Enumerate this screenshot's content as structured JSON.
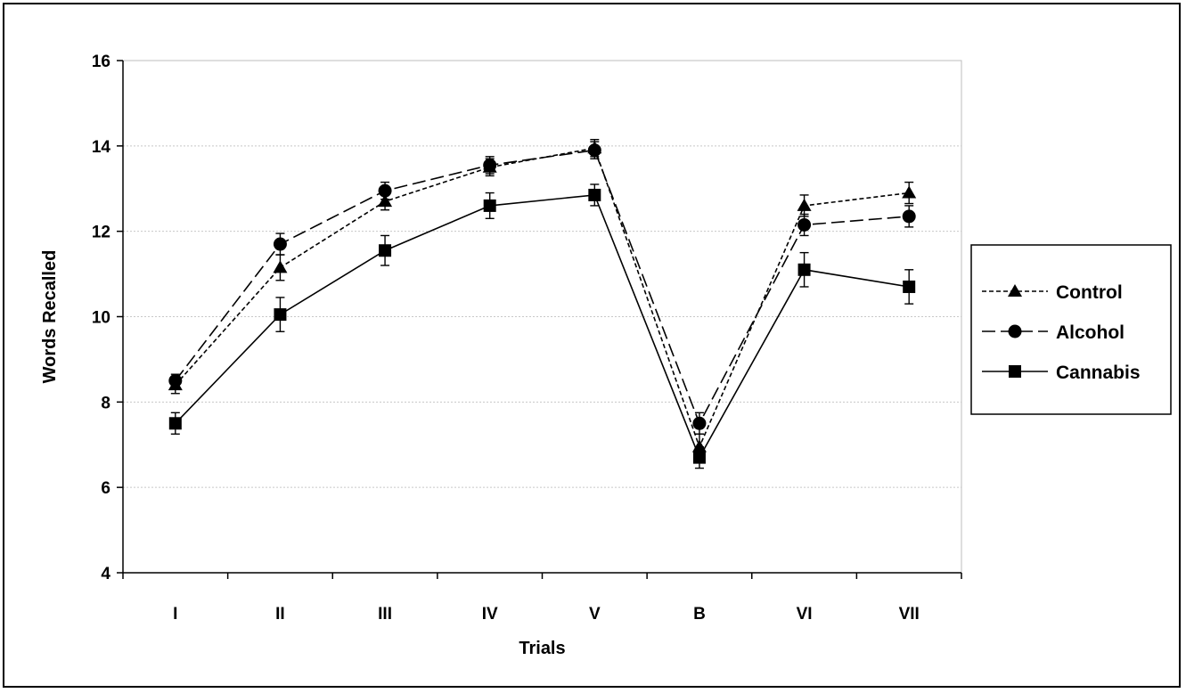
{
  "chart_data": {
    "type": "line",
    "title": "",
    "xlabel": "Trials",
    "ylabel": "Words Recalled",
    "categories": [
      "I",
      "II",
      "III",
      "IV",
      "V",
      "B",
      "VI",
      "VII"
    ],
    "ylim": [
      4,
      16
    ],
    "yticks": [
      4,
      6,
      8,
      10,
      12,
      14,
      16
    ],
    "grid": "horizontal",
    "legend_position": "right",
    "series": [
      {
        "name": "Control",
        "marker": "triangle",
        "dash": "short-dash",
        "values": [
          8.4,
          11.15,
          12.7,
          13.5,
          13.95,
          6.95,
          12.6,
          12.9
        ],
        "errors": [
          0.2,
          0.3,
          0.2,
          0.2,
          0.2,
          0.3,
          0.25,
          0.25
        ]
      },
      {
        "name": "Alcohol",
        "marker": "circle",
        "dash": "long-dash",
        "values": [
          8.5,
          11.7,
          12.95,
          13.55,
          13.9,
          7.5,
          12.15,
          12.35
        ],
        "errors": [
          0.15,
          0.25,
          0.2,
          0.2,
          0.2,
          0.25,
          0.25,
          0.25
        ]
      },
      {
        "name": "Cannabis",
        "marker": "square",
        "dash": "solid",
        "values": [
          7.5,
          10.05,
          11.55,
          12.6,
          12.85,
          6.7,
          11.1,
          10.7
        ],
        "errors": [
          0.25,
          0.4,
          0.35,
          0.3,
          0.25,
          0.25,
          0.4,
          0.4
        ]
      }
    ]
  }
}
